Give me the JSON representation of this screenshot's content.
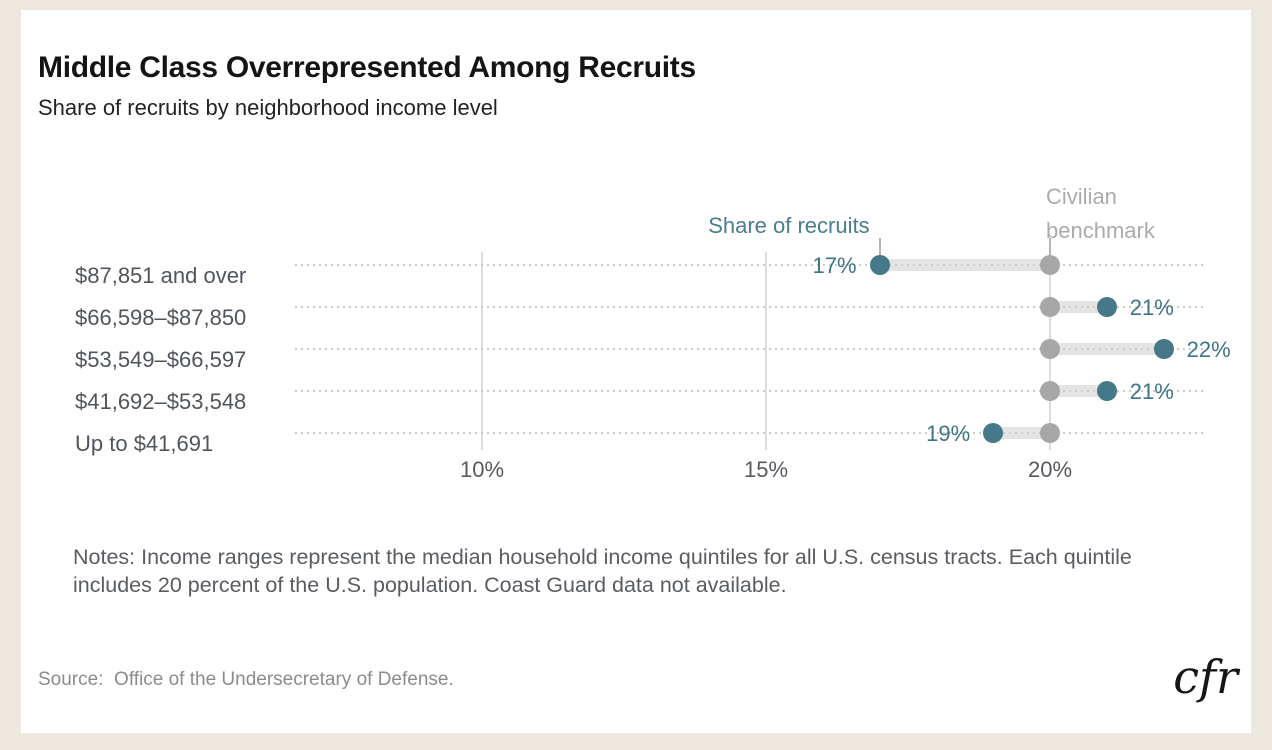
{
  "header": {
    "title": "Middle Class Overrepresented Among Recruits",
    "subtitle": "Share of recruits by neighborhood income level"
  },
  "chart_data": {
    "type": "dumbbell",
    "title": "Middle Class Overrepresented Among Recruits",
    "subtitle": "Share of recruits by neighborhood income level",
    "categories": [
      "$87,851 and over",
      "$66,598–$87,850",
      "$53,549–$66,597",
      "$41,692–$53,548",
      "Up to $41,691"
    ],
    "series": [
      {
        "name": "Share of recruits",
        "values": [
          17,
          21,
          22,
          21,
          19
        ],
        "labels": [
          "17%",
          "21%",
          "22%",
          "21%",
          "19%"
        ],
        "label_side": [
          "left",
          "right",
          "right",
          "right",
          "left"
        ]
      },
      {
        "name": "Civilian benchmark",
        "values": [
          20,
          20,
          20,
          20,
          20
        ]
      }
    ],
    "x_axis": {
      "tick_labels": [
        "10%",
        "15%",
        "20%"
      ],
      "tick_values": [
        10,
        15,
        20
      ],
      "range_percent": [
        6.7,
        22.8
      ]
    },
    "grid": {
      "horizontal": "dotted",
      "vertical": "solid-at-ticks"
    },
    "legend_position": "annotations-above-first-row"
  },
  "colors": {
    "frame": "#ECE8E0",
    "card": "#FFFFFF",
    "recruit_dot": "#45798A",
    "value_text": "#3E7486",
    "benchmark_dot": "#A7A7A7",
    "connector": "#E4E4E4",
    "dotted_line": "#CBCBCB",
    "gridline": "#DBDBDB"
  },
  "footer": {
    "notes": "Notes: Income ranges represent the median household income quintiles for all U.S. census tracts. Each quintile includes 20 percent of the U.S. population. Coast Guard data not available.",
    "source": "Source:  Office of the Undersecretary of Defense.",
    "logo_text": "cfr"
  }
}
